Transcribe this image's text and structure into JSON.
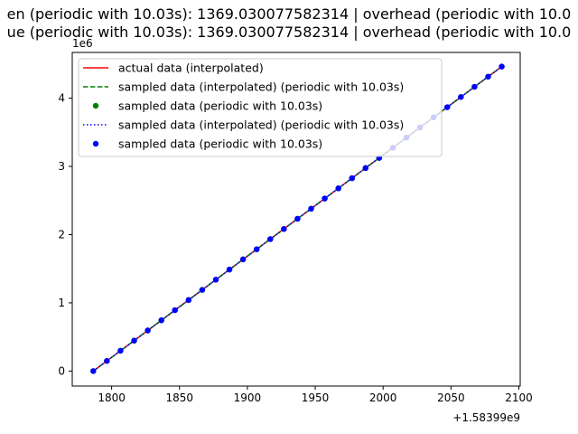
{
  "chart_data": {
    "type": "line",
    "title_lines": [
      "en (periodic with 10.03s): 1369.030077582314 | overhead (periodic with 10.0",
      "ue (periodic with 10.03s): 1369.030077582314 | overhead (periodic with 10.0"
    ],
    "x_offset_label": "+1.58399e9",
    "y_scale_label": "1e6",
    "xlim": [
      1771,
      2101
    ],
    "ylim": [
      -0.22,
      4.67
    ],
    "xticks": [
      1800,
      1850,
      1900,
      1950,
      2000,
      2050,
      2100
    ],
    "xtick_labels": [
      "1800",
      "1850",
      "1900",
      "1950",
      "2000",
      "2050",
      "2100"
    ],
    "yticks": [
      0,
      1,
      2,
      3,
      4
    ],
    "ytick_labels": [
      "0",
      "1",
      "2",
      "3",
      "4"
    ],
    "legend_position": "upper-left",
    "colors": {
      "actual": "#ff0000",
      "sampled_green": "#008000",
      "sampled_blue": "#0000ff"
    },
    "series": [
      {
        "name": "actual data (interpolated)",
        "style": "solid-line",
        "color": "#ff0000",
        "x": [
          1786.5,
          2086.5
        ],
        "y": [
          0.0,
          4.45
        ]
      },
      {
        "name": "sampled data (interpolated) (periodic with 10.03s)",
        "style": "dashed-line",
        "color": "#008000"
      },
      {
        "name": "sampled data (periodic with 10.03s)",
        "style": "markers",
        "color": "#008000"
      },
      {
        "name": "sampled data (interpolated) (periodic with 10.03s)",
        "style": "dotted-line",
        "color": "#0000ff"
      },
      {
        "name": "sampled data (periodic with 10.03s)",
        "style": "markers",
        "color": "#0000ff"
      }
    ],
    "sampled_x": [
      1786.5,
      1796.53,
      1806.56,
      1816.59,
      1826.62,
      1836.65,
      1846.68,
      1856.71,
      1866.74,
      1876.77,
      1886.8,
      1896.83,
      1906.86,
      1916.89,
      1926.92,
      1936.95,
      1946.98,
      1957.01,
      1967.04,
      1977.07,
      1987.1,
      1997.13,
      2007.16,
      2017.19,
      2027.22,
      2037.25,
      2047.28,
      2057.31,
      2067.34,
      2077.37,
      2087.4
    ],
    "sampled_y": [
      0.0,
      0.149,
      0.298,
      0.446,
      0.595,
      0.744,
      0.893,
      1.041,
      1.19,
      1.339,
      1.488,
      1.637,
      1.785,
      1.934,
      2.083,
      2.232,
      2.38,
      2.529,
      2.678,
      2.827,
      2.976,
      3.124,
      3.273,
      3.422,
      3.571,
      3.719,
      3.868,
      4.017,
      4.166,
      4.315,
      4.463
    ]
  }
}
